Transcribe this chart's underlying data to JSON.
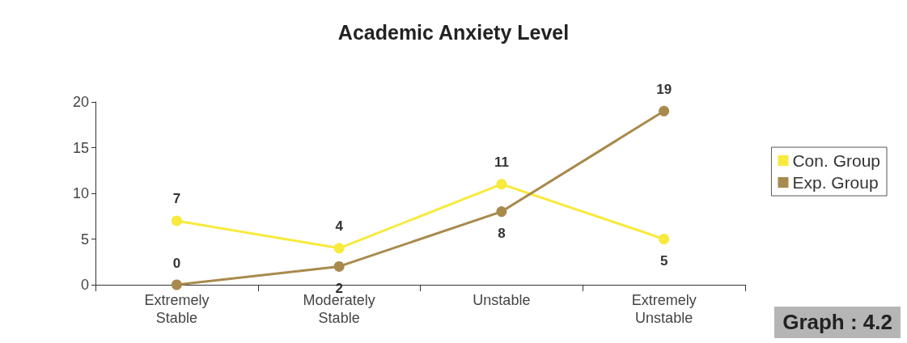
{
  "chart_data": {
    "type": "line",
    "title": "Academic Anxiety Level",
    "categories": [
      "Extremely\nStable",
      "Moderately\nStable",
      "Unstable",
      "Extremely\nUnstable"
    ],
    "series": [
      {
        "name": "Con. Group",
        "color": "#f7ea3c",
        "values": [
          7,
          4,
          11,
          5
        ]
      },
      {
        "name": "Exp. Group",
        "color": "#a88a4c",
        "values": [
          0,
          2,
          8,
          19
        ]
      }
    ],
    "ylim": [
      0,
      20
    ],
    "yticks": [
      0,
      5,
      10,
      15,
      20
    ],
    "grid": false,
    "legend": "right",
    "marker": "circle",
    "line_style": "solid",
    "data_labels": true,
    "annotations": [
      "Graph : 4.2"
    ]
  }
}
